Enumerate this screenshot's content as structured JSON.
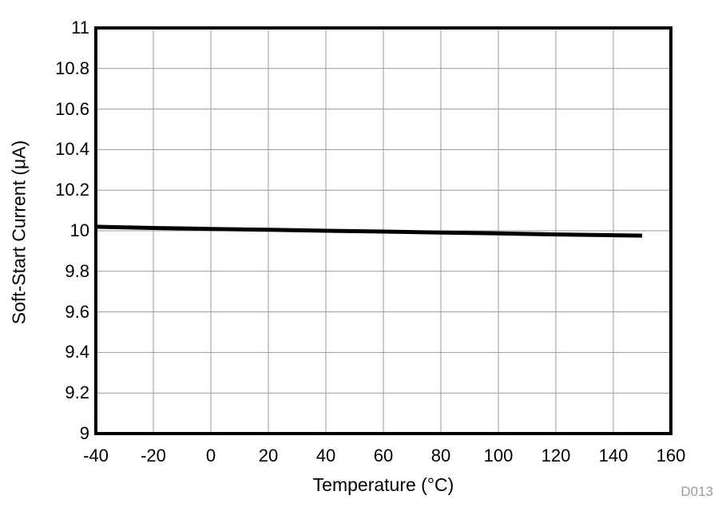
{
  "chart_data": {
    "type": "line",
    "title": "",
    "xlabel": "Temperature (°C)",
    "ylabel": "Soft-Start Current (μA)",
    "xlim": [
      -40,
      160
    ],
    "ylim": [
      9,
      11
    ],
    "grid": true,
    "legend_position": "none",
    "xticks": {
      "values": [
        -40,
        -20,
        0,
        20,
        40,
        60,
        80,
        100,
        120,
        140,
        160
      ],
      "labels": [
        "-40",
        "-20",
        "0",
        "20",
        "40",
        "60",
        "80",
        "100",
        "120",
        "140",
        "160"
      ]
    },
    "yticks": {
      "values": [
        9,
        9.2,
        9.4,
        9.6,
        9.8,
        10,
        10.2,
        10.4,
        10.6,
        10.8,
        11
      ],
      "labels": [
        "9",
        "9.2",
        "9.4",
        "9.6",
        "9.8",
        "10",
        "10.2",
        "10.4",
        "10.6",
        "10.8",
        "11"
      ]
    },
    "series": [
      {
        "name": "Soft-Start Current",
        "color": "#000000",
        "stroke_width": 5,
        "points": [
          [
            -40,
            10.02
          ],
          [
            -20,
            10.014
          ],
          [
            0,
            10.009
          ],
          [
            20,
            10.005
          ],
          [
            40,
            10.0
          ],
          [
            60,
            9.996
          ],
          [
            80,
            9.991
          ],
          [
            100,
            9.987
          ],
          [
            120,
            9.982
          ],
          [
            140,
            9.978
          ],
          [
            150,
            9.976
          ]
        ]
      }
    ],
    "watermark": "D013"
  },
  "colors": {
    "background": "#ffffff",
    "frame": "#000000",
    "grid": "#999999",
    "text": "#000000",
    "watermark": "#9b9b9b"
  }
}
